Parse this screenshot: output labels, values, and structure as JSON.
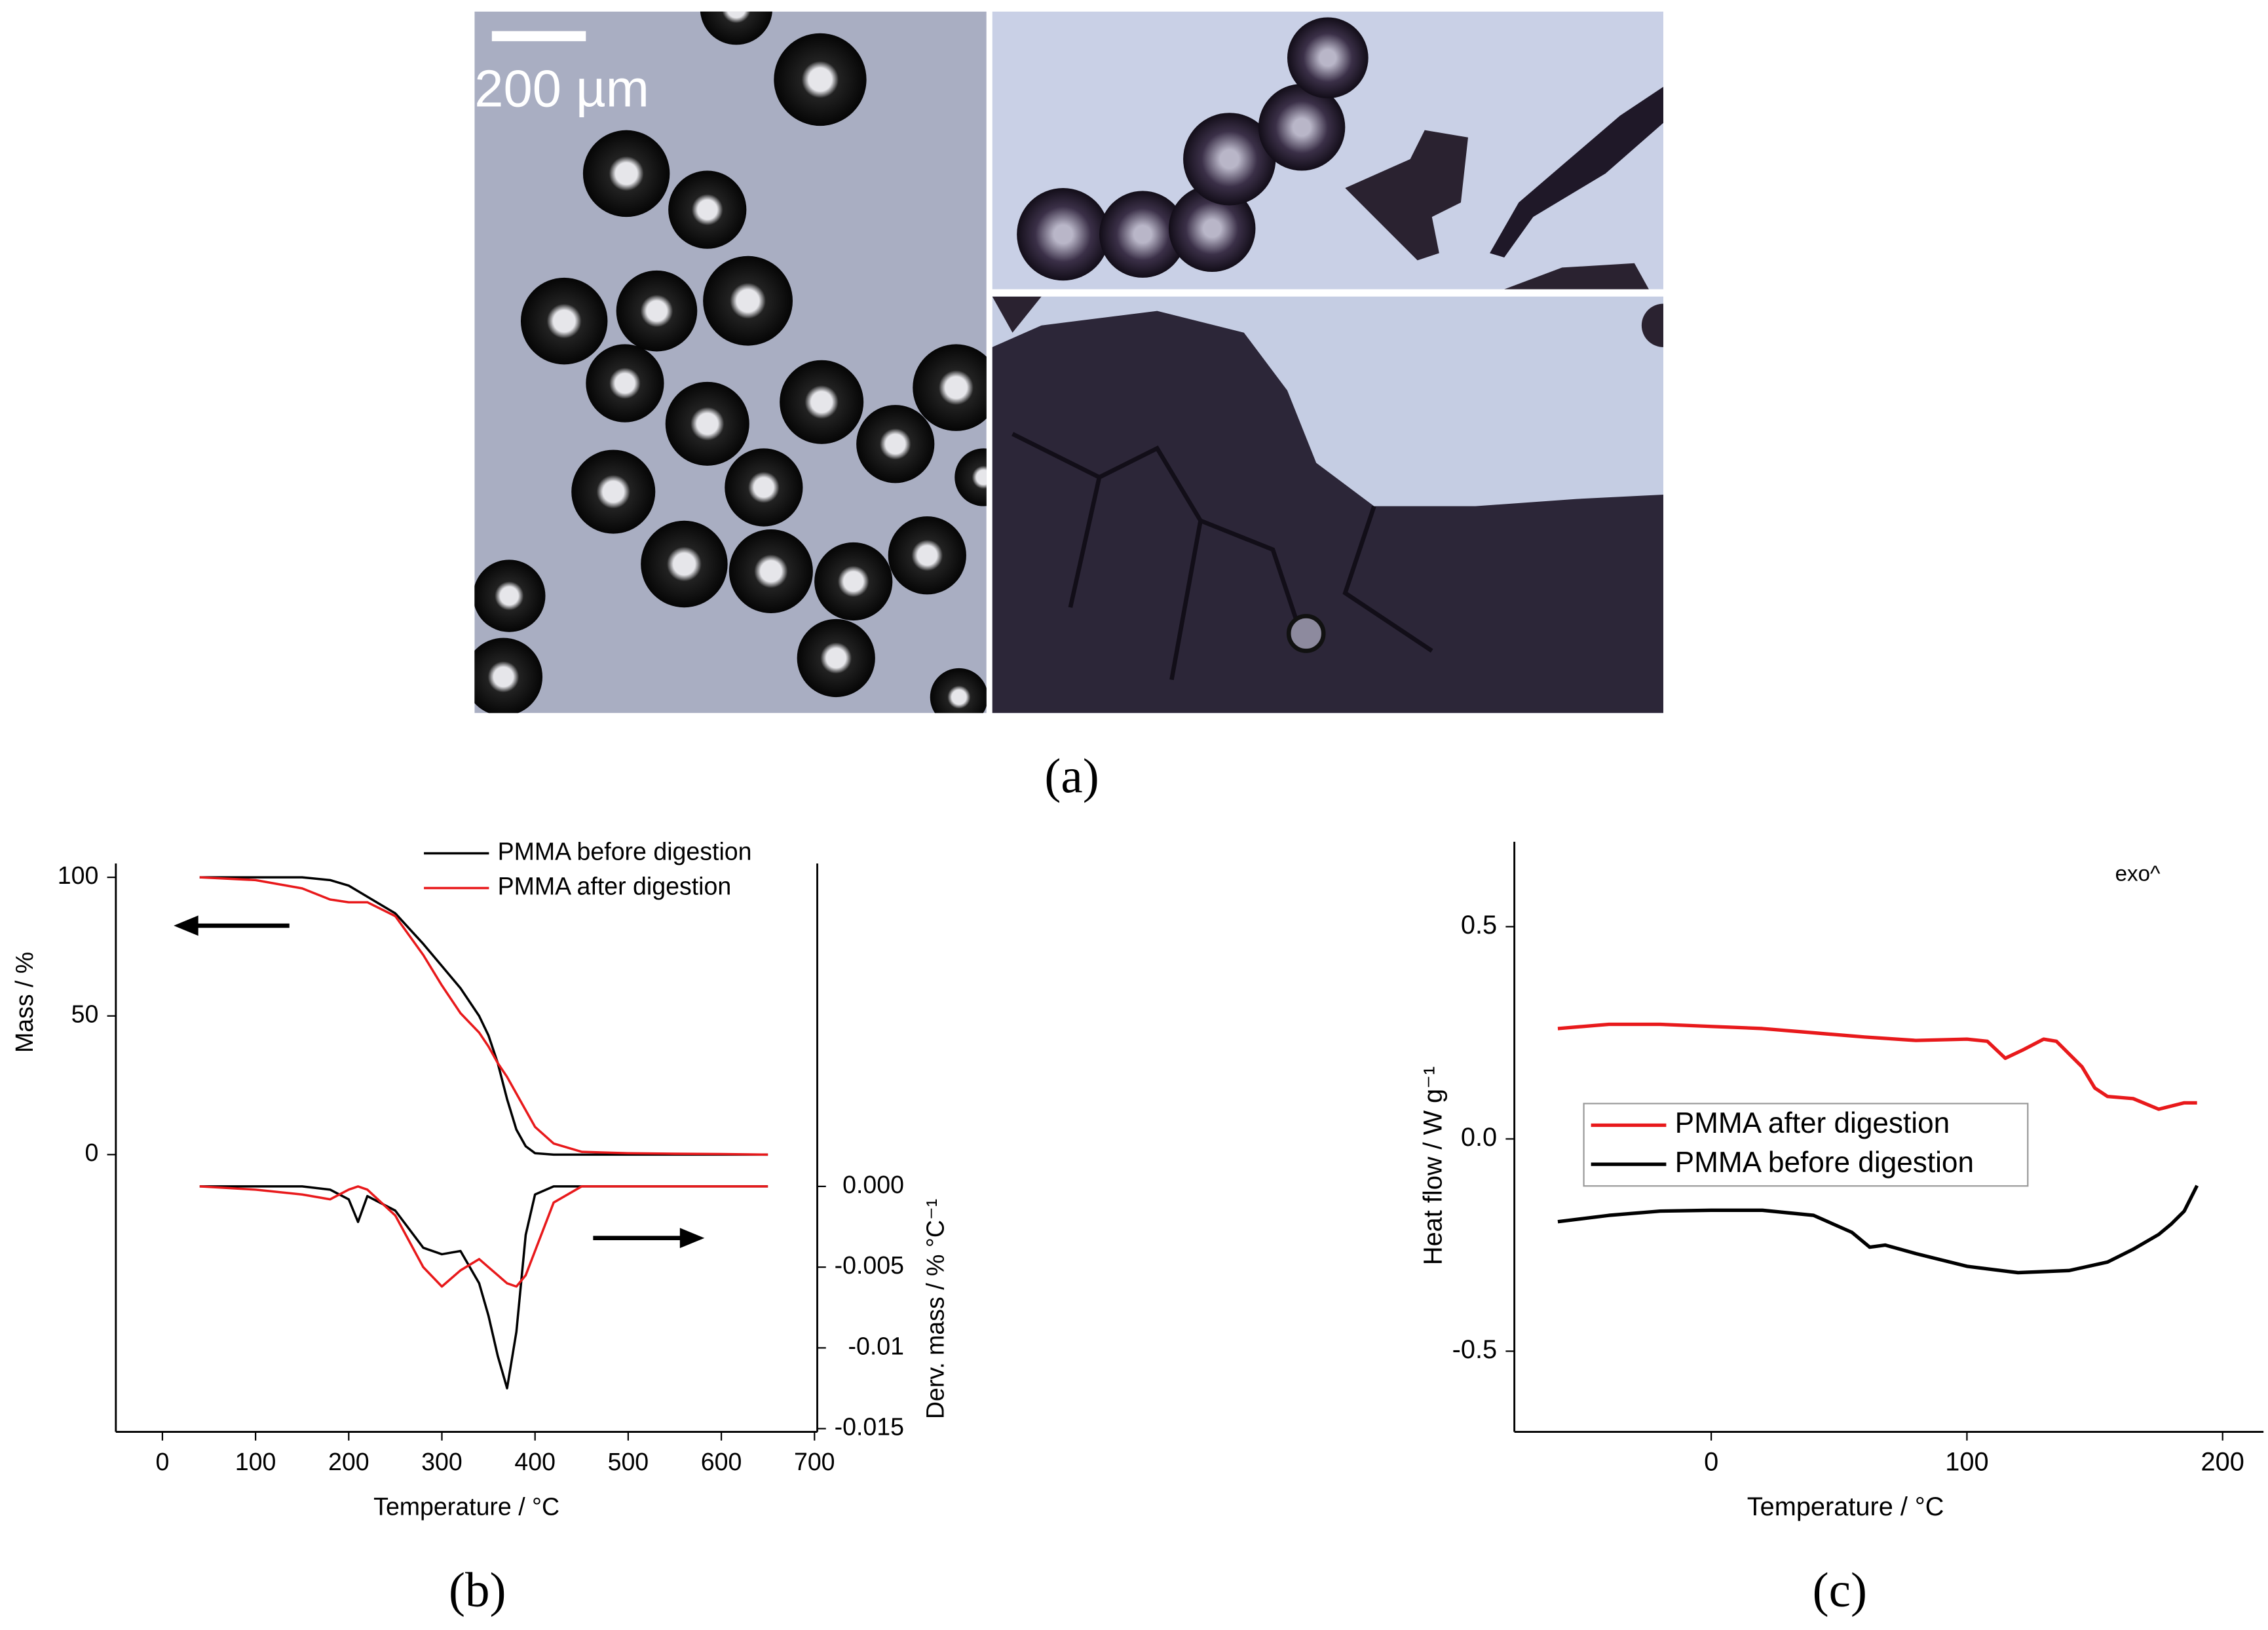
{
  "figure": {
    "panels": [
      "(a)",
      "(b)",
      "(c)"
    ],
    "scale_bar": "200 µm"
  },
  "chart_data": [
    {
      "type": "line",
      "xlabel": "Temperature / °C",
      "ylabel": "Mass / %",
      "y2label": "Derv.  mass / % °C⁻¹",
      "xlim": [
        -50,
        703
      ],
      "xticks": [
        0,
        100,
        200,
        300,
        400,
        500,
        600,
        700
      ],
      "ylim": [
        -100,
        105
      ],
      "yticks": [
        0,
        50,
        100
      ],
      "y2lim": [
        -0.0152,
        0.02
      ],
      "y2ticks": [
        {
          "value": 0,
          "label": "0.000"
        },
        -0.005,
        -0.01,
        -0.015
      ],
      "legend": "top",
      "x": [
        40,
        100,
        150,
        180,
        200,
        210,
        220,
        250,
        280,
        300,
        320,
        340,
        350,
        360,
        370,
        380,
        390,
        400,
        420,
        450,
        500,
        550,
        600,
        650
      ],
      "series": [
        {
          "name": "PMMA before digestion",
          "color": "#000000",
          "values": [
            100,
            100,
            100,
            99,
            97,
            95,
            93,
            87,
            76,
            68,
            60,
            50,
            43,
            33,
            20,
            9,
            3,
            0.5,
            0,
            0,
            0,
            0,
            0,
            0
          ]
        },
        {
          "name": "PMMA after digestion",
          "color": "#e8191b",
          "values": [
            100,
            99,
            96,
            92,
            91,
            91,
            91,
            86,
            72,
            61,
            51,
            44,
            39,
            33,
            28,
            22,
            16,
            10,
            4,
            1,
            0.5,
            0.3,
            0.2,
            0
          ]
        },
        {
          "color": "#000000",
          "axis": "y2",
          "values": [
            0,
            0,
            0,
            -0.0002,
            -0.0008,
            -0.0022,
            -0.0006,
            -0.0015,
            -0.0038,
            -0.0042,
            -0.004,
            -0.006,
            -0.008,
            -0.0105,
            -0.0125,
            -0.009,
            -0.003,
            -0.0005,
            0,
            0,
            0,
            0,
            0,
            0
          ]
        },
        {
          "color": "#e8191b",
          "axis": "y2",
          "values": [
            0,
            -0.0002,
            -0.0005,
            -0.0008,
            -0.0002,
            0,
            -0.0002,
            -0.0018,
            -0.005,
            -0.0062,
            -0.0052,
            -0.0045,
            -0.005,
            -0.0055,
            -0.006,
            -0.0062,
            -0.0055,
            -0.004,
            -0.001,
            0,
            0,
            0,
            0,
            0
          ]
        }
      ]
    },
    {
      "type": "line",
      "xlabel": "Temperature / °C",
      "ylabel": "Heat flow / W g⁻¹",
      "annotation": "exo^",
      "xlim": [
        -77,
        216
      ],
      "xticks": [
        0,
        100,
        200
      ],
      "ylim": [
        -0.69,
        0.7
      ],
      "yticks": [
        -0.5,
        {
          "value": 0,
          "label": "0.0"
        },
        0.5
      ],
      "legend": "center-left",
      "series": [
        {
          "name": "PMMA after digestion",
          "color": "#e8191b",
          "x": [
            -60,
            -40,
            -20,
            0,
            20,
            40,
            60,
            80,
            100,
            108,
            115,
            122,
            130,
            135,
            145,
            150,
            155,
            165,
            175,
            185,
            190
          ],
          "values": [
            0.26,
            0.27,
            0.27,
            0.265,
            0.26,
            0.25,
            0.24,
            0.232,
            0.235,
            0.23,
            0.19,
            0.21,
            0.235,
            0.23,
            0.17,
            0.12,
            0.1,
            0.095,
            0.07,
            0.085,
            0.085
          ]
        },
        {
          "name": "PMMA before digestion",
          "color": "#000000",
          "x": [
            -60,
            -40,
            -20,
            0,
            20,
            40,
            55,
            62,
            68,
            80,
            100,
            120,
            140,
            155,
            165,
            175,
            180,
            185,
            190
          ],
          "values": [
            -0.195,
            -0.18,
            -0.17,
            -0.168,
            -0.168,
            -0.18,
            -0.22,
            -0.255,
            -0.25,
            -0.27,
            -0.3,
            -0.315,
            -0.31,
            -0.29,
            -0.26,
            -0.225,
            -0.2,
            -0.17,
            -0.11
          ]
        }
      ]
    }
  ]
}
